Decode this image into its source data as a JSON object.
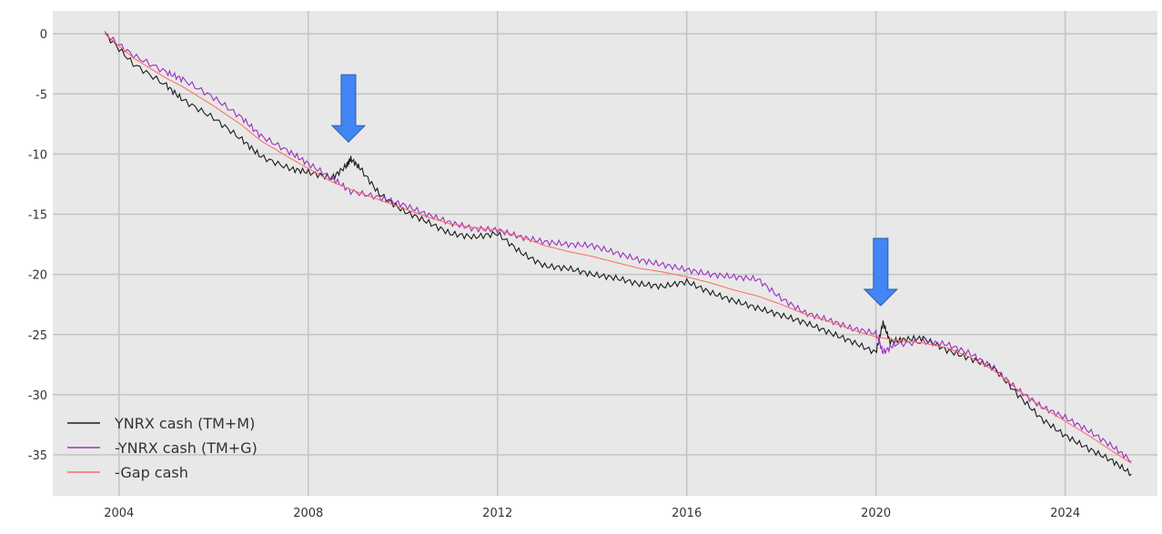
{
  "chart_data": {
    "type": "line",
    "title": "",
    "xlabel": "",
    "ylabel": "",
    "xlim": [
      2002.6,
      2025.95
    ],
    "ylim": [
      -38.4,
      1.9
    ],
    "xticks": [
      2004,
      2008,
      2012,
      2016,
      2020,
      2024
    ],
    "yticks": [
      0,
      -5,
      -10,
      -15,
      -20,
      -25,
      -30,
      -35
    ],
    "grid": true,
    "background": "#e8e8e8",
    "legend_position": "lower-left",
    "series": [
      {
        "name": "YNRX cash (TM+M)",
        "color": "#1a1a1a",
        "x": [
          2003.7,
          2004.3,
          2005.0,
          2005.35,
          2006.0,
          2006.6,
          2007.0,
          2007.6,
          2008.0,
          2008.5,
          2008.8,
          2008.9,
          2009.1,
          2009.5,
          2010.0,
          2010.5,
          2011.0,
          2011.5,
          2012.0,
          2012.5,
          2013.0,
          2013.5,
          2014.0,
          2014.5,
          2015.0,
          2015.5,
          2016.0,
          2016.5,
          2017.0,
          2017.5,
          2018.0,
          2018.5,
          2019.0,
          2019.5,
          2020.0,
          2020.15,
          2020.3,
          2020.6,
          2021.0,
          2021.5,
          2022.0,
          2022.5,
          2023.0,
          2023.5,
          2024.0,
          2024.5,
          2025.0,
          2025.4
        ],
        "y": [
          0,
          -2.5,
          -4.3,
          -5.5,
          -7.0,
          -8.8,
          -10.2,
          -11.2,
          -11.5,
          -12.0,
          -11.0,
          -10.4,
          -11.2,
          -13.3,
          -14.7,
          -15.6,
          -16.6,
          -16.9,
          -16.6,
          -18.2,
          -19.3,
          -19.5,
          -20.0,
          -20.3,
          -20.8,
          -21.0,
          -20.6,
          -21.5,
          -22.2,
          -22.8,
          -23.4,
          -24.0,
          -24.8,
          -25.6,
          -26.5,
          -24.0,
          -25.6,
          -25.4,
          -25.3,
          -26.3,
          -27.0,
          -27.8,
          -30.0,
          -32.0,
          -33.4,
          -34.5,
          -35.5,
          -36.6
        ]
      },
      {
        "name": "-YNRX cash (TM+G)",
        "color": "#9b30c0",
        "x": [
          2003.7,
          2004.3,
          2005.0,
          2005.35,
          2006.0,
          2006.6,
          2007.0,
          2007.6,
          2008.0,
          2008.5,
          2008.9,
          2009.5,
          2010.0,
          2010.5,
          2011.0,
          2011.5,
          2012.0,
          2012.5,
          2013.0,
          2013.5,
          2014.0,
          2014.5,
          2015.0,
          2015.5,
          2016.0,
          2016.5,
          2017.0,
          2017.5,
          2018.0,
          2018.5,
          2019.0,
          2019.5,
          2020.0,
          2020.15,
          2020.4,
          2021.0,
          2021.5,
          2022.0,
          2022.5,
          2023.0,
          2023.5,
          2024.0,
          2024.5,
          2025.0,
          2025.4
        ],
        "y": [
          0,
          -1.8,
          -3.2,
          -3.8,
          -5.3,
          -7.0,
          -8.5,
          -9.8,
          -10.8,
          -12.0,
          -13.1,
          -13.6,
          -14.2,
          -15.0,
          -15.7,
          -16.2,
          -16.3,
          -16.9,
          -17.3,
          -17.5,
          -17.6,
          -18.2,
          -18.8,
          -19.2,
          -19.6,
          -20.0,
          -20.2,
          -20.4,
          -22.0,
          -23.2,
          -23.8,
          -24.5,
          -24.9,
          -26.5,
          -25.8,
          -25.6,
          -25.8,
          -26.6,
          -27.8,
          -29.6,
          -31.0,
          -31.9,
          -33.0,
          -34.3,
          -35.5
        ]
      },
      {
        "name": "-Gap cash",
        "color": "#ff6a5a",
        "x": [
          2003.7,
          2004.3,
          2005.0,
          2005.35,
          2006.0,
          2006.6,
          2007.0,
          2007.6,
          2008.0,
          2008.5,
          2009.0,
          2009.5,
          2010.0,
          2010.5,
          2011.0,
          2011.5,
          2012.0,
          2012.5,
          2013.0,
          2013.5,
          2014.0,
          2014.5,
          2015.0,
          2015.5,
          2016.0,
          2016.5,
          2017.0,
          2017.5,
          2018.0,
          2018.5,
          2019.0,
          2019.5,
          2020.0,
          2020.5,
          2021.0,
          2021.5,
          2022.0,
          2022.5,
          2023.0,
          2023.5,
          2024.0,
          2024.5,
          2025.0,
          2025.4
        ],
        "y": [
          0,
          -2.0,
          -3.7,
          -4.4,
          -6.0,
          -7.6,
          -8.9,
          -10.3,
          -11.2,
          -12.3,
          -13.1,
          -13.8,
          -14.5,
          -15.2,
          -15.8,
          -16.1,
          -16.3,
          -16.9,
          -17.6,
          -18.1,
          -18.5,
          -19.0,
          -19.5,
          -19.8,
          -20.2,
          -20.7,
          -21.3,
          -21.8,
          -22.5,
          -23.3,
          -23.9,
          -24.6,
          -25.2,
          -25.5,
          -25.7,
          -26.1,
          -26.9,
          -28.0,
          -29.6,
          -31.0,
          -32.2,
          -33.4,
          -34.7,
          -35.7
        ]
      }
    ],
    "annotations": [
      {
        "type": "arrow-down",
        "color": "#4285f4",
        "x": 2008.85,
        "y": -9.0
      },
      {
        "type": "arrow-down",
        "color": "#4285f4",
        "x": 2020.1,
        "y": -22.6
      }
    ]
  }
}
